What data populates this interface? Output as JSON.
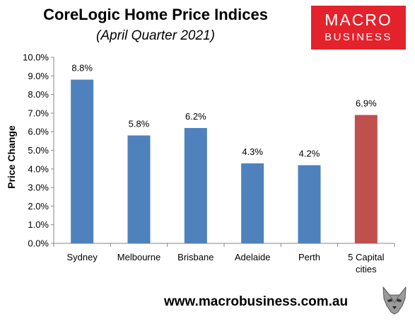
{
  "header": {
    "title": "CoreLogic Home Price Indices",
    "subtitle": "(April Quarter 2021)"
  },
  "logo": {
    "line1": "MACRO",
    "line2": "BUSINESS",
    "bg_color": "#e4222b"
  },
  "footer": {
    "url": "www.macrobusiness.com.au",
    "mascot_icon": "wolf-icon"
  },
  "chart_data": {
    "type": "bar",
    "title": "CoreLogic Home Price Indices",
    "subtitle": "(April Quarter 2021)",
    "xlabel": "",
    "ylabel": "Price Change",
    "categories": [
      "Sydney",
      "Melbourne",
      "Brisbane",
      "Adelaide",
      "Perth",
      "5 Capital cities"
    ],
    "category_lines": [
      [
        "Sydney"
      ],
      [
        "Melbourne"
      ],
      [
        "Brisbane"
      ],
      [
        "Adelaide"
      ],
      [
        "Perth"
      ],
      [
        "5 Capital",
        "cities"
      ]
    ],
    "values": [
      8.8,
      5.8,
      6.2,
      4.3,
      4.2,
      6.9
    ],
    "data_labels": [
      "8.8%",
      "5.8%",
      "6.2%",
      "4.3%",
      "4.2%",
      "6.9%"
    ],
    "colors": [
      "#4f81bd",
      "#4f81bd",
      "#4f81bd",
      "#4f81bd",
      "#4f81bd",
      "#c0504d"
    ],
    "ylim": [
      0,
      10
    ],
    "yticks": [
      0,
      1,
      2,
      3,
      4,
      5,
      6,
      7,
      8,
      9,
      10
    ],
    "ytick_labels": [
      "0.0%",
      "1.0%",
      "2.0%",
      "3.0%",
      "4.0%",
      "5.0%",
      "6.0%",
      "7.0%",
      "8.0%",
      "9.0%",
      "10.0%"
    ],
    "grid": false,
    "legend": "none"
  }
}
